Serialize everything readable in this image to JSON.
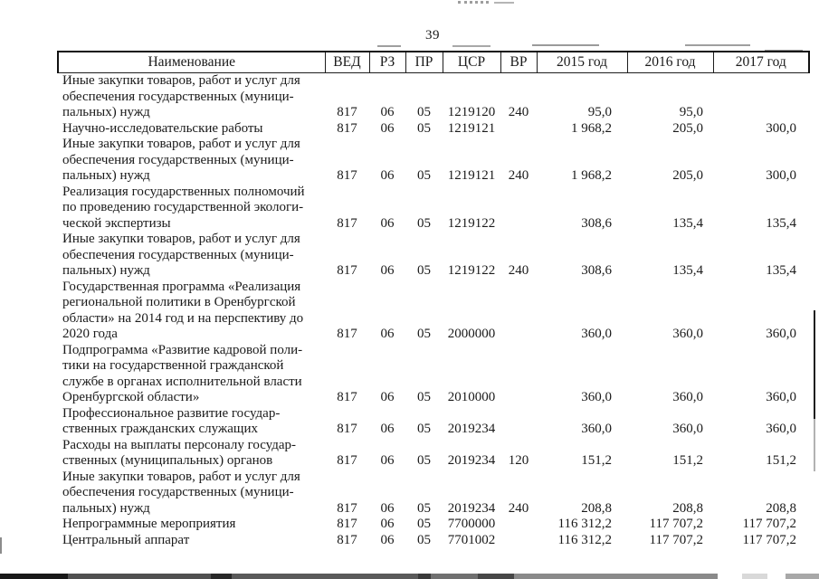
{
  "page": {
    "number": "39"
  },
  "colors": {
    "ink": "#1a1a1a",
    "paper": "#ffffff"
  },
  "table": {
    "headers": [
      "Наименование",
      "ВЕД",
      "РЗ",
      "ПР",
      "ЦСР",
      "ВР",
      "2015 год",
      "2016 год",
      "2017 год"
    ],
    "rows": [
      {
        "name": "Иные закупки товаров, работ и услуг для\nобеспечения государственных (муници-\nпальных) нужд",
        "ved": "817",
        "rz": "06",
        "pr": "05",
        "csr": "1219120",
        "vr": "240",
        "y2015": "95,0",
        "y2016": "95,0",
        "y2017": ""
      },
      {
        "name": "Научно-исследовательские работы",
        "ved": "817",
        "rz": "06",
        "pr": "05",
        "csr": "1219121",
        "vr": "",
        "y2015": "1 968,2",
        "y2016": "205,0",
        "y2017": "300,0"
      },
      {
        "name": "Иные закупки товаров, работ и услуг для\nобеспечения государственных (муници-\nпальных) нужд",
        "ved": "817",
        "rz": "06",
        "pr": "05",
        "csr": "1219121",
        "vr": "240",
        "y2015": "1 968,2",
        "y2016": "205,0",
        "y2017": "300,0"
      },
      {
        "name": "Реализация государственных полномочий\nпо проведению государственной экологи-\nческой экспертизы",
        "ved": "817",
        "rz": "06",
        "pr": "05",
        "csr": "1219122",
        "vr": "",
        "y2015": "308,6",
        "y2016": "135,4",
        "y2017": "135,4"
      },
      {
        "name": "Иные закупки товаров, работ и услуг для\nобеспечения государственных (муници-\nпальных) нужд",
        "ved": "817",
        "rz": "06",
        "pr": "05",
        "csr": "1219122",
        "vr": "240",
        "y2015": "308,6",
        "y2016": "135,4",
        "y2017": "135,4"
      },
      {
        "name": "Государственная программа «Реализация\nрегиональной политики в Оренбургской\nобласти» на 2014 год и на перспективу до\n2020 года",
        "ved": "817",
        "rz": "06",
        "pr": "05",
        "csr": "2000000",
        "vr": "",
        "y2015": "360,0",
        "y2016": "360,0",
        "y2017": "360,0"
      },
      {
        "name": "Подпрограмма «Развитие кадровой поли-\nтики на государственной гражданской\nслужбе в органах исполнительной власти\nОренбургской области»",
        "ved": "817",
        "rz": "06",
        "pr": "05",
        "csr": "2010000",
        "vr": "",
        "y2015": "360,0",
        "y2016": "360,0",
        "y2017": "360,0"
      },
      {
        "name": "Профессиональное развитие государ-\nственных гражданских служащих",
        "ved": "817",
        "rz": "06",
        "pr": "05",
        "csr": "2019234",
        "vr": "",
        "y2015": "360,0",
        "y2016": "360,0",
        "y2017": "360,0"
      },
      {
        "name": "Расходы на выплаты персоналу государ-\nственных (муниципальных) органов",
        "ved": "817",
        "rz": "06",
        "pr": "05",
        "csr": "2019234",
        "vr": "120",
        "y2015": "151,2",
        "y2016": "151,2",
        "y2017": "151,2"
      },
      {
        "name": "Иные закупки товаров, работ и услуг для\nобеспечения государственных (муници-\nпальных) нужд",
        "ved": "817",
        "rz": "06",
        "pr": "05",
        "csr": "2019234",
        "vr": "240",
        "y2015": "208,8",
        "y2016": "208,8",
        "y2017": "208,8"
      },
      {
        "name": "Непрограммные мероприятия",
        "ved": "817",
        "rz": "06",
        "pr": "05",
        "csr": "7700000",
        "vr": "",
        "y2015": "116 312,2",
        "y2016": "117 707,2",
        "y2017": "117 707,2"
      },
      {
        "name": "Центральный аппарат",
        "ved": "817",
        "rz": "06",
        "pr": "05",
        "csr": "7701002",
        "vr": "",
        "y2015": "116 312,2",
        "y2016": "117 707,2",
        "y2017": "117 707,2"
      }
    ]
  }
}
